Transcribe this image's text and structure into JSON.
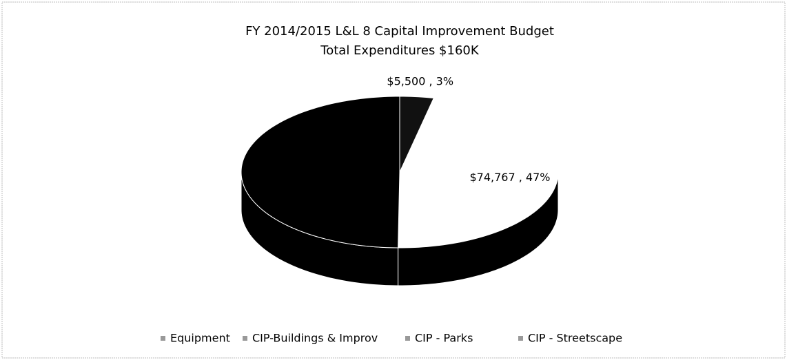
{
  "chart_data": {
    "type": "pie3d",
    "title": "FY 2014/2015 L&L 8 Capital Improvement Budget",
    "subtitle": "Total Expenditures $160K",
    "categories": [
      "Equipment",
      "CIP-Buildings & Improv",
      "CIP - Parks",
      "CIP - Streetscape"
    ],
    "values": [
      5500,
      74767,
      0,
      79733
    ],
    "value_labels": [
      "$5,500 , 3%",
      "$74,767 , 47%",
      null,
      null
    ],
    "colors": [
      "#111111",
      "#ffffff",
      "#777777",
      "#000000"
    ],
    "legend": "bottom"
  }
}
